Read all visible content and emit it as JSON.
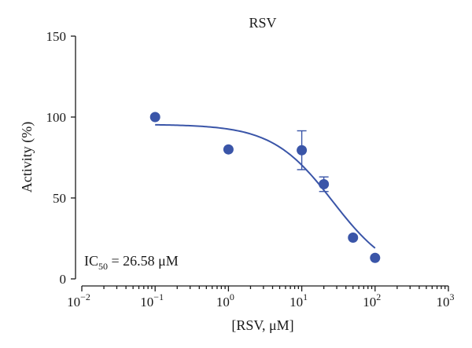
{
  "chart_data": {
    "type": "scatter",
    "title": "RSV",
    "xlabel": "[RSV, μM]",
    "ylabel": "Activity (%)",
    "x_scale": "log",
    "xlim": [
      0.01,
      1000
    ],
    "ylim": [
      0,
      150
    ],
    "x_ticks": [
      {
        "value": 0.01,
        "base": "10",
        "exp": "−2"
      },
      {
        "value": 0.1,
        "base": "10",
        "exp": "−1"
      },
      {
        "value": 1,
        "base": "10",
        "exp": "0"
      },
      {
        "value": 10,
        "base": "10",
        "exp": "1"
      },
      {
        "value": 100,
        "base": "10",
        "exp": "2"
      },
      {
        "value": 1000,
        "base": "10",
        "exp": "3"
      }
    ],
    "y_ticks": [
      {
        "value": 0,
        "label": "0"
      },
      {
        "value": 50,
        "label": "50"
      },
      {
        "value": 100,
        "label": "100"
      },
      {
        "value": 150,
        "label": "150"
      }
    ],
    "points": [
      {
        "x": 0.1,
        "y": 100
      },
      {
        "x": 1,
        "y": 80
      },
      {
        "x": 10,
        "y": 79.5,
        "err": 12
      },
      {
        "x": 20,
        "y": 58.5,
        "err": 4.5
      },
      {
        "x": 50,
        "y": 25.5
      },
      {
        "x": 100,
        "y": 13
      }
    ],
    "fit": {
      "top": 95.5,
      "bottom": 0,
      "ic50": 26.58,
      "hill": 1.05,
      "x_range": [
        0.1,
        100
      ]
    },
    "annotation": {
      "prefix": "IC",
      "subscript": "50",
      "text": " = 26.58 μM"
    },
    "grid": false,
    "legend": "none",
    "colors": {
      "marker": "#3a55a8",
      "axis": "#1a1a1a"
    }
  }
}
